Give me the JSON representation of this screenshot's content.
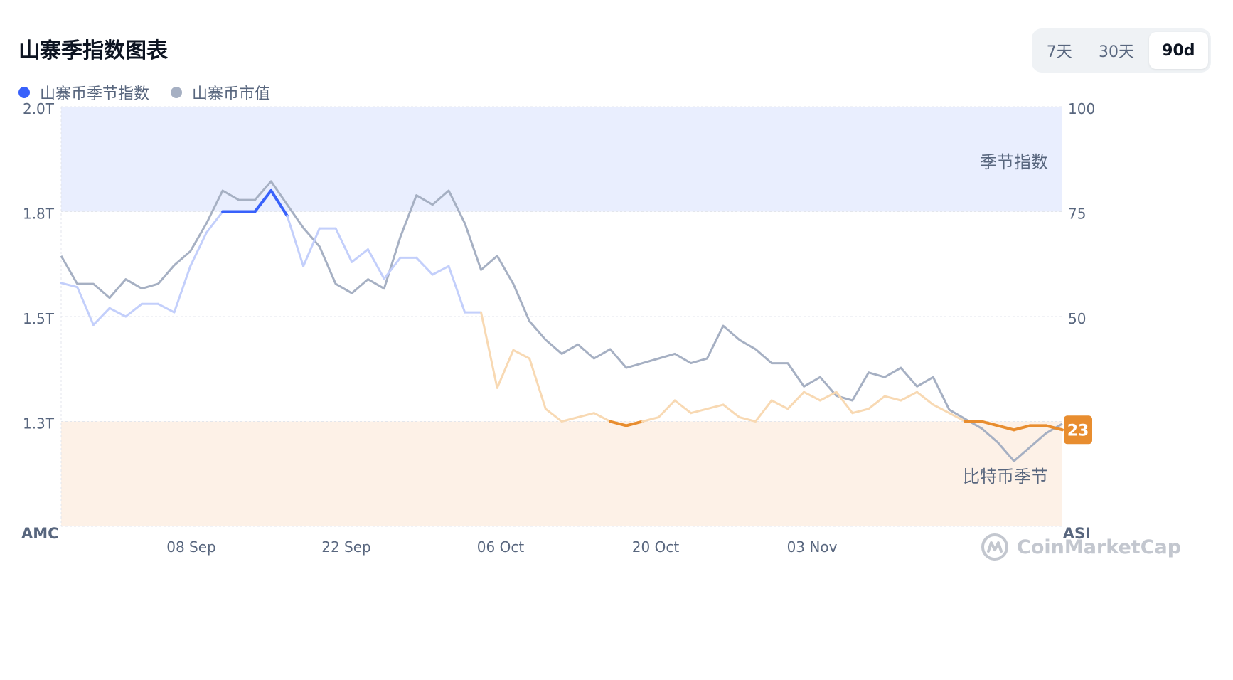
{
  "header": {
    "title": "山寨季指数图表"
  },
  "legend": {
    "items": [
      {
        "label": "山寨币季节指数",
        "color": "#3861fb"
      },
      {
        "label": "山寨币市值",
        "color": "#a6b0c3"
      }
    ]
  },
  "range": {
    "buttons": [
      "7天",
      "30天",
      "90d"
    ],
    "active": "90d"
  },
  "chart_data": {
    "type": "line",
    "x_tick_labels": [
      "08 Sep",
      "22 Sep",
      "06 Oct",
      "20 Oct",
      "03 Nov"
    ],
    "left_axis": {
      "label": "AMC",
      "ticks": [
        "2.0T",
        "1.8T",
        "1.5T",
        "1.3T"
      ],
      "ylim": [
        1.1,
        2.0
      ]
    },
    "right_axis": {
      "label": "ASI",
      "ticks": [
        "100",
        "75",
        "50"
      ],
      "ylim": [
        0,
        100
      ]
    },
    "bands": [
      {
        "label": "季节指数",
        "from": 75,
        "to": 100,
        "color": "#e9eefe"
      },
      {
        "label": "比特币季节",
        "from": 0,
        "to": 25,
        "color": "#fdf1e7"
      }
    ],
    "current_value": 23,
    "series": [
      {
        "name": "山寨币市值",
        "axis": "left",
        "color": "#a6b0c3",
        "values": [
          1.68,
          1.62,
          1.62,
          1.59,
          1.63,
          1.61,
          1.62,
          1.66,
          1.69,
          1.75,
          1.82,
          1.8,
          1.8,
          1.84,
          1.79,
          1.74,
          1.7,
          1.62,
          1.6,
          1.63,
          1.61,
          1.72,
          1.81,
          1.79,
          1.82,
          1.75,
          1.65,
          1.68,
          1.62,
          1.54,
          1.5,
          1.47,
          1.49,
          1.46,
          1.48,
          1.44,
          1.45,
          1.46,
          1.47,
          1.45,
          1.46,
          1.53,
          1.5,
          1.48,
          1.45,
          1.45,
          1.4,
          1.42,
          1.38,
          1.37,
          1.43,
          1.42,
          1.44,
          1.4,
          1.42,
          1.35,
          1.33,
          1.31,
          1.28,
          1.24,
          1.27,
          1.3,
          1.32
        ]
      },
      {
        "name": "山寨币季节指数",
        "axis": "right",
        "color": "#3861fb",
        "values": [
          58,
          57,
          48,
          52,
          50,
          53,
          53,
          51,
          62,
          70,
          75,
          75,
          75,
          80,
          74,
          62,
          71,
          71,
          63,
          66,
          59,
          64,
          64,
          60,
          62,
          51,
          51,
          33,
          42,
          40,
          28,
          25,
          26,
          27,
          25,
          24,
          25,
          26,
          30,
          27,
          28,
          29,
          26,
          25,
          30,
          28,
          32,
          30,
          32,
          27,
          28,
          31,
          30,
          32,
          29,
          27,
          25,
          25,
          24,
          23,
          24,
          24,
          23
        ]
      }
    ]
  },
  "watermark": {
    "text": "CoinMarketCap"
  }
}
